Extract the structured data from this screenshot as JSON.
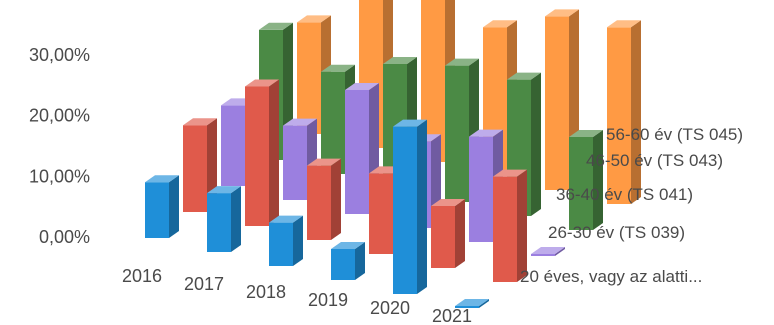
{
  "chart_data": {
    "type": "bar",
    "subtype": "3d-column",
    "title": "",
    "xlabel": "",
    "ylabel": "",
    "ylim": [
      0,
      0.3
    ],
    "y_ticks": [
      "0,00%",
      "10,00%",
      "20,00%",
      "30,00%"
    ],
    "grid": false,
    "legend": "none",
    "categories": [
      "2016",
      "2017",
      "2018",
      "2019",
      "2020",
      "2021"
    ],
    "series": [
      {
        "name": "20 éves, vagy az alatti...",
        "color": "#1f8fd8",
        "values": [
          0.09,
          0.095,
          0.07,
          0.05,
          0.27,
          0.0
        ]
      },
      {
        "name": "26-30 év (TS 039)",
        "color": "#e05a4b",
        "values": [
          0.14,
          0.225,
          0.12,
          0.13,
          0.1,
          0.17
        ]
      },
      {
        "name": "36-40 év (TS 041)",
        "color": "#9b7fe0",
        "values": [
          0.13,
          0.12,
          0.2,
          0.14,
          0.17,
          0.0
        ]
      },
      {
        "name": "46-50 év (TS 043)",
        "color": "#4b8a45",
        "values": [
          0.21,
          0.165,
          0.2,
          0.22,
          0.22,
          0.15
        ]
      },
      {
        "name": "56-60 év (TS 045)",
        "color": "#ff9a44",
        "values": [
          0.18,
          0.245,
          0.31,
          0.24,
          0.28,
          0.285
        ]
      }
    ]
  }
}
